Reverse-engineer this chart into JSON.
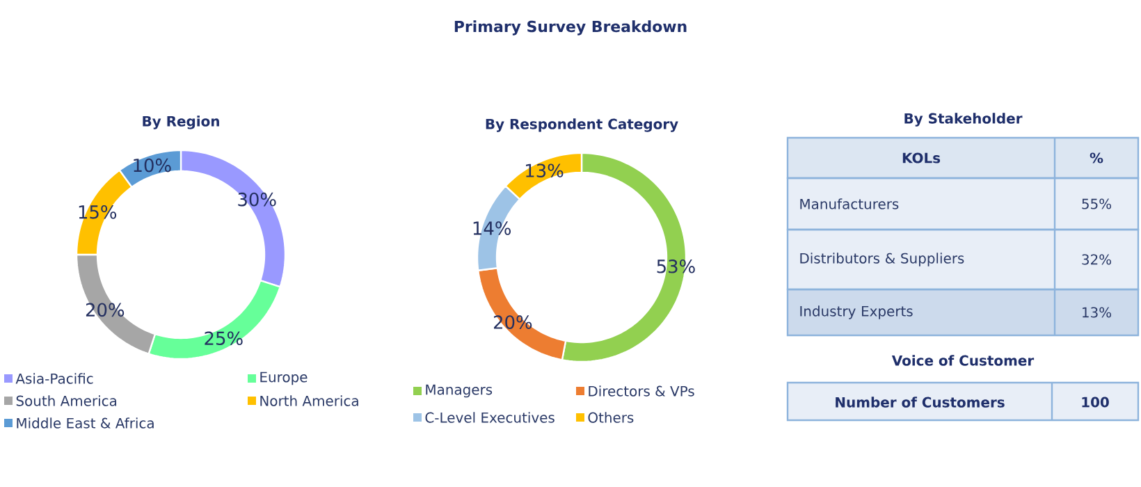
{
  "chart_data": [
    {
      "type": "other",
      "title": "Primary Survey Breakdown"
    },
    {
      "type": "donut",
      "title": "By Region",
      "categories": [
        "Asia-Pacific",
        "Europe",
        "South America",
        "North America",
        "Middle East & Africa"
      ],
      "values": [
        30,
        25,
        20,
        15,
        10
      ],
      "value_labels": [
        "30%",
        "25%",
        "20%",
        "15%",
        "10%"
      ],
      "colors": [
        "#9999ff",
        "#66ff99",
        "#a6a6a6",
        "#ffc000",
        "#5b9bd5"
      ],
      "legend": "bottom"
    },
    {
      "type": "donut",
      "title": "By Respondent Category",
      "categories": [
        "Managers",
        "Directors & VPs",
        "C-Level Executives",
        "Others"
      ],
      "values": [
        53,
        20,
        14,
        13
      ],
      "value_labels": [
        "53%",
        "20%",
        "14%",
        "13%"
      ],
      "colors": [
        "#92d050",
        "#ed7d31",
        "#9dc3e6",
        "#ffc000"
      ],
      "legend": "bottom"
    },
    {
      "type": "other",
      "title": "By Stakeholder",
      "annotations": [
        "KOLs",
        "%",
        "Manufacturers",
        "55%",
        "Distributors & Suppliers",
        "32%",
        "Industry Experts",
        "13%",
        "Voice of Customer",
        "Number of Customers",
        "100"
      ]
    }
  ]
}
